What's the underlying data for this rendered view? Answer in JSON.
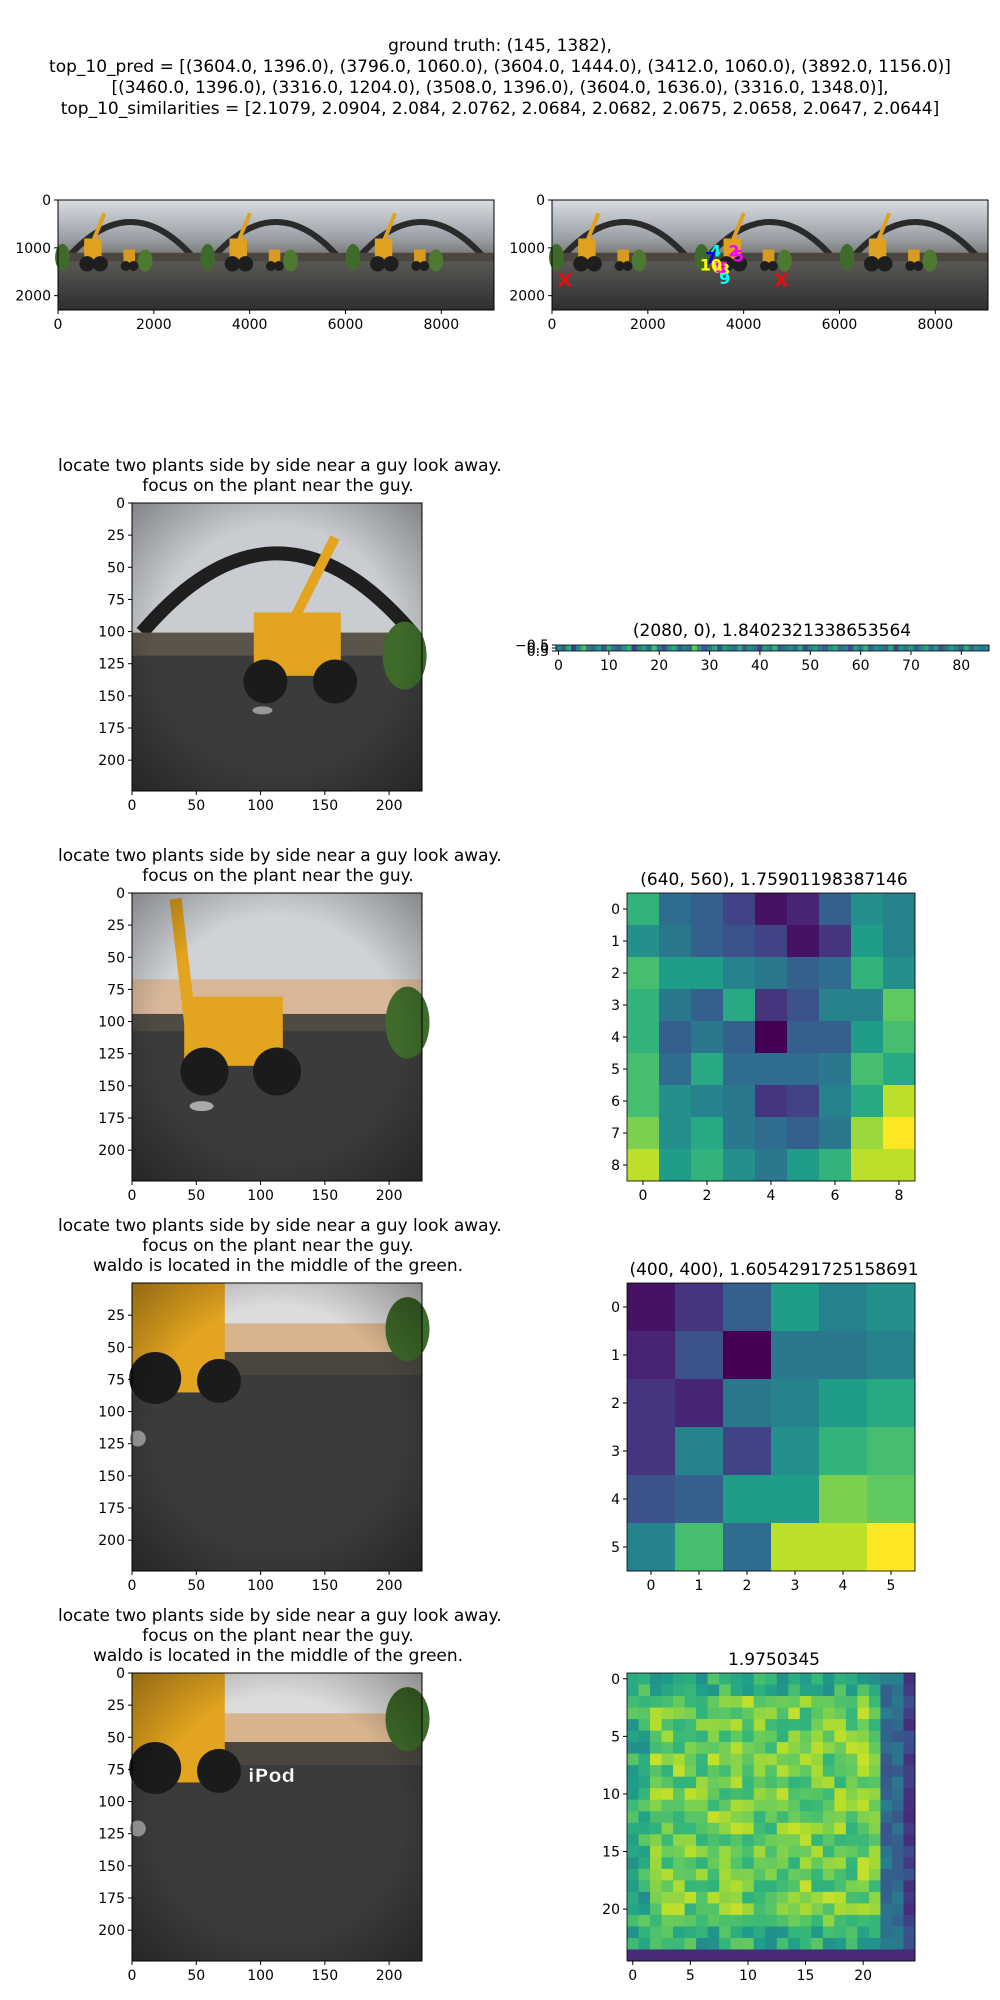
{
  "header": {
    "line1": "ground truth: (145, 1382),",
    "line2": "top_10_pred = [(3604.0, 1396.0), (3796.0, 1060.0), (3604.0, 1444.0), (3412.0, 1060.0), (3892.0, 1156.0)]",
    "line3": "[(3460.0, 1396.0), (3316.0, 1204.0), (3508.0, 1396.0), (3604.0, 1636.0), (3316.0, 1348.0)],",
    "line4": "top_10_similarities = [2.1079, 2.0904, 2.084, 2.0762, 2.0684, 2.0682, 2.0675, 2.0658, 2.0647, 2.0644]"
  },
  "captions": {
    "row2": [
      "locate two plants side by side near a guy look away.",
      "focus on the plant near the guy."
    ],
    "row3": [
      "locate two plants side by side near a guy look away.",
      "focus on the plant near the guy."
    ],
    "row4": [
      "locate two plants side by side near a guy look away.",
      "focus on the plant near the guy.",
      "waldo is located in the middle of the green."
    ],
    "row5": [
      "locate two plants side by side near a guy look away.",
      "focus on the plant near the guy.",
      "waldo is located in the middle of the green."
    ]
  },
  "overlay_text": "iPod",
  "chart_data": [
    {
      "type": "image",
      "id": "panorama",
      "xlim": [
        0,
        9100
      ],
      "ylim": [
        2300,
        0
      ],
      "xticks": [
        "0",
        "2000",
        "4000",
        "6000",
        "8000"
      ],
      "yticks": [
        "0",
        "1000",
        "2000"
      ]
    },
    {
      "type": "scatter",
      "id": "panorama-preds",
      "xlim": [
        0,
        9100
      ],
      "ylim": [
        2300,
        0
      ],
      "xticks": [
        "0",
        "2000",
        "4000",
        "6000",
        "8000"
      ],
      "yticks": [
        "0",
        "1000",
        "2000"
      ],
      "ground_truth_markers": [
        [
          270,
          1660
        ],
        [
          4790,
          1660
        ]
      ],
      "ground_truth_label": "X",
      "predictions": [
        {
          "label": "1",
          "x": 3604,
          "y": 1396,
          "color": "#ff00ff"
        },
        {
          "label": "2",
          "x": 3796,
          "y": 1060,
          "color": "#ff00ff"
        },
        {
          "label": "3",
          "x": 3604,
          "y": 1444,
          "color": "#ffff00"
        },
        {
          "label": "4",
          "x": 3412,
          "y": 1060,
          "color": "#00ffff"
        },
        {
          "label": "5",
          "x": 3892,
          "y": 1156,
          "color": "#ff00ff"
        },
        {
          "label": "6",
          "x": 3460,
          "y": 1396,
          "color": "#ffff00"
        },
        {
          "label": "7",
          "x": 3316,
          "y": 1204,
          "color": "#0000ff"
        },
        {
          "label": "8",
          "x": 3508,
          "y": 1396,
          "color": "#ff00ff"
        },
        {
          "label": "9",
          "x": 3604,
          "y": 1636,
          "color": "#00ffff"
        },
        {
          "label": "10",
          "x": 3316,
          "y": 1348,
          "color": "#ffff00"
        }
      ]
    },
    {
      "type": "image",
      "id": "crop1",
      "xlim": [
        0,
        224
      ],
      "ylim": [
        224,
        0
      ],
      "xticks": [
        "0",
        "50",
        "100",
        "150",
        "200"
      ],
      "yticks": [
        "0",
        "25",
        "50",
        "75",
        "100",
        "125",
        "150",
        "175",
        "200"
      ]
    },
    {
      "type": "heatmap",
      "id": "strip",
      "title": "(2080, 0), 1.8402321338653564",
      "rows": 1,
      "cols": 86,
      "xticks": [
        "0",
        "10",
        "20",
        "30",
        "40",
        "50",
        "60",
        "70",
        "80"
      ],
      "yticks": [
        "−0.5",
        "0.0",
        "0.5"
      ],
      "values": [
        0.45,
        0.3,
        0.6,
        0.2,
        0.5,
        0.7,
        0.4,
        0.35,
        0.55,
        0.25,
        0.6,
        0.4,
        0.3,
        0.5,
        0.65,
        0.2,
        0.45,
        0.55,
        0.35,
        0.7,
        0.4,
        0.25,
        0.5,
        0.6,
        0.3,
        0.45,
        0.35,
        0.75,
        0.5,
        0.3,
        0.4,
        0.6,
        0.25,
        0.55,
        0.45,
        0.35,
        0.6,
        0.3,
        0.5,
        0.4,
        0.2,
        0.55,
        0.45,
        0.65,
        0.3,
        0.4,
        0.5,
        0.35,
        0.6,
        0.25,
        0.45,
        0.55,
        0.4,
        0.3,
        0.5,
        0.6,
        0.35,
        0.45,
        0.25,
        0.55,
        0.4,
        0.65,
        0.3,
        0.5,
        0.45,
        0.35,
        0.6,
        0.2,
        0.5,
        0.4,
        0.55,
        0.3,
        0.45,
        0.6,
        0.35,
        0.5,
        0.25,
        0.4,
        0.55,
        0.45,
        0.3,
        0.6,
        0.35,
        0.5,
        0.4,
        0.45
      ]
    },
    {
      "type": "image",
      "id": "crop2",
      "xlim": [
        0,
        224
      ],
      "ylim": [
        224,
        0
      ],
      "xticks": [
        "0",
        "50",
        "100",
        "150",
        "200"
      ],
      "yticks": [
        "0",
        "25",
        "50",
        "75",
        "100",
        "125",
        "150",
        "175",
        "200"
      ]
    },
    {
      "type": "heatmap",
      "id": "grid9",
      "title": "(640, 560), 1.75901198387146",
      "rows": 9,
      "cols": 9,
      "xticks": [
        "0",
        "2",
        "4",
        "6",
        "8"
      ],
      "yticks": [
        "0",
        "1",
        "2",
        "3",
        "4",
        "5",
        "6",
        "7",
        "8"
      ],
      "values": [
        [
          0.65,
          0.35,
          0.3,
          0.2,
          0.05,
          0.1,
          0.3,
          0.5,
          0.45
        ],
        [
          0.5,
          0.4,
          0.3,
          0.25,
          0.2,
          0.05,
          0.15,
          0.55,
          0.45
        ],
        [
          0.7,
          0.55,
          0.55,
          0.45,
          0.4,
          0.3,
          0.35,
          0.65,
          0.5
        ],
        [
          0.65,
          0.4,
          0.3,
          0.6,
          0.15,
          0.25,
          0.45,
          0.45,
          0.75
        ],
        [
          0.65,
          0.3,
          0.4,
          0.3,
          0.0,
          0.3,
          0.3,
          0.55,
          0.7
        ],
        [
          0.7,
          0.35,
          0.6,
          0.35,
          0.35,
          0.35,
          0.4,
          0.7,
          0.6
        ],
        [
          0.7,
          0.5,
          0.45,
          0.4,
          0.15,
          0.2,
          0.45,
          0.6,
          0.9
        ],
        [
          0.8,
          0.5,
          0.6,
          0.4,
          0.35,
          0.3,
          0.4,
          0.85,
          1.0
        ],
        [
          0.9,
          0.55,
          0.65,
          0.5,
          0.4,
          0.55,
          0.65,
          0.9,
          0.9
        ]
      ]
    },
    {
      "type": "image",
      "id": "crop3",
      "xlim": [
        0,
        224
      ],
      "ylim": [
        224,
        0
      ],
      "xticks": [
        "0",
        "50",
        "100",
        "150",
        "200"
      ],
      "yticks": [
        "25",
        "50",
        "75",
        "100",
        "125",
        "150",
        "175",
        "200"
      ]
    },
    {
      "type": "heatmap",
      "id": "grid6",
      "title": "(400, 400), 1.6054291725158691",
      "rows": 6,
      "cols": 6,
      "xticks": [
        "0",
        "1",
        "2",
        "3",
        "4",
        "5"
      ],
      "yticks": [
        "0",
        "1",
        "2",
        "3",
        "4",
        "5"
      ],
      "values": [
        [
          0.05,
          0.15,
          0.3,
          0.55,
          0.45,
          0.5
        ],
        [
          0.1,
          0.25,
          0.0,
          0.4,
          0.4,
          0.45
        ],
        [
          0.15,
          0.1,
          0.4,
          0.45,
          0.55,
          0.6
        ],
        [
          0.15,
          0.45,
          0.2,
          0.5,
          0.65,
          0.7
        ],
        [
          0.25,
          0.3,
          0.55,
          0.55,
          0.8,
          0.75
        ],
        [
          0.45,
          0.7,
          0.35,
          0.9,
          0.9,
          1.0
        ]
      ]
    },
    {
      "type": "image",
      "id": "crop4",
      "xlim": [
        0,
        224
      ],
      "ylim": [
        224,
        0
      ],
      "xticks": [
        "0",
        "50",
        "100",
        "150",
        "200"
      ],
      "yticks": [
        "0",
        "25",
        "50",
        "75",
        "100",
        "125",
        "150",
        "175",
        "200"
      ]
    },
    {
      "type": "heatmap",
      "id": "grid25",
      "title": "1.9750345",
      "rows": 25,
      "cols": 25,
      "xticks": [
        "0",
        "5",
        "10",
        "15",
        "20"
      ],
      "yticks": [
        "0",
        "5",
        "10",
        "15",
        "20"
      ],
      "border_cols_low": [
        22,
        23,
        24
      ],
      "border_row_low": 24,
      "level_interior": 0.78,
      "level_edge": 0.62,
      "level_low": 0.12
    }
  ]
}
